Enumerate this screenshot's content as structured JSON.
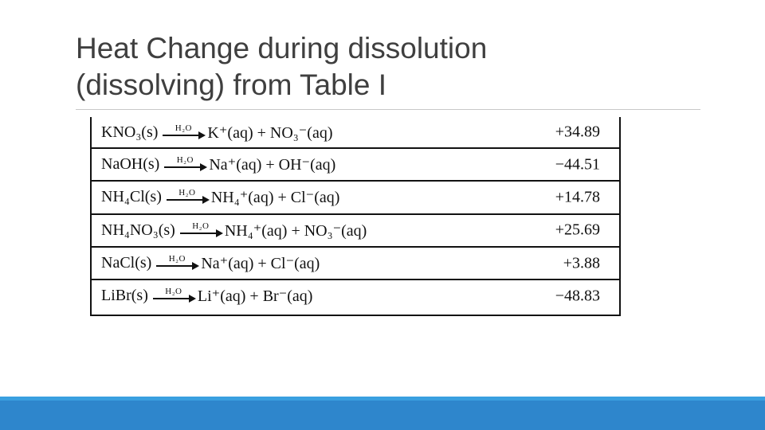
{
  "slide": {
    "title_line1": "Heat Change during dissolution",
    "title_line2": "(dissolving) from Table I"
  },
  "table": {
    "arrow_label": "H₂O",
    "rows": [
      {
        "reactant": "KNO₃(s)",
        "products": "K⁺(aq) + NO₃⁻(aq)",
        "heat": "+34.89"
      },
      {
        "reactant": "NaOH(s)",
        "products": "Na⁺(aq) + OH⁻(aq)",
        "heat": "−44.51"
      },
      {
        "reactant": "NH₄Cl(s)",
        "products": "NH₄⁺(aq) + Cl⁻(aq)",
        "heat": "+14.78"
      },
      {
        "reactant": "NH₄NO₃(s)",
        "products": "NH₄⁺(aq) + NO₃⁻(aq)",
        "heat": "+25.69"
      },
      {
        "reactant": "NaCl(s)",
        "products": "Na⁺(aq) + Cl⁻(aq)",
        "heat": "+3.88"
      },
      {
        "reactant": "LiBr(s)",
        "products": "Li⁺(aq) + Br⁻(aq)",
        "heat": "−48.83"
      }
    ]
  },
  "colors": {
    "footer": "#2e86cc",
    "title_text": "#3f3f3f"
  }
}
